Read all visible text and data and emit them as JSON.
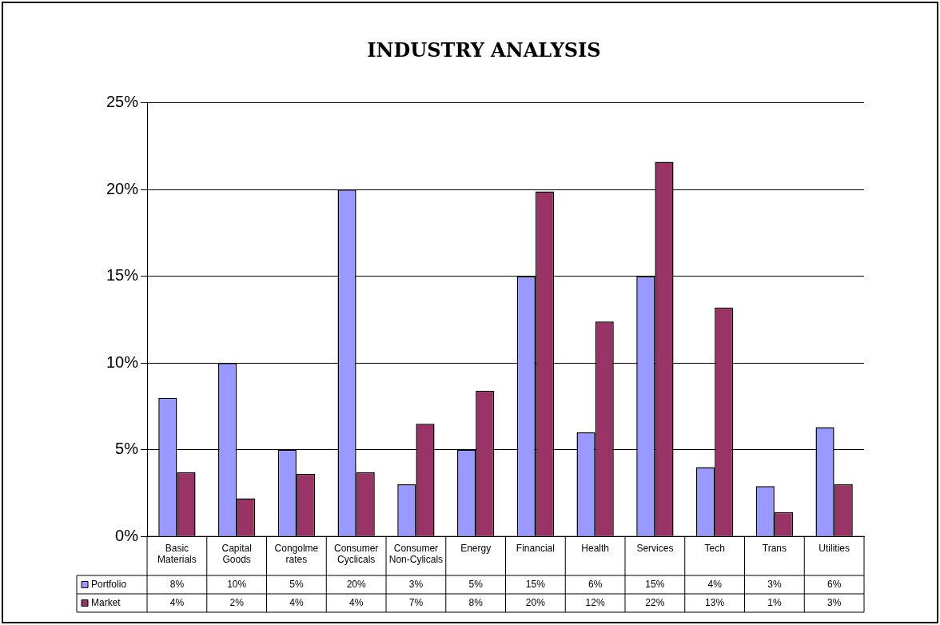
{
  "chart_data": {
    "type": "bar",
    "title": "INDUSTRY ANALYSIS",
    "categories": [
      "Basic Materials",
      "Capital Goods",
      "Congolmerates",
      "Consumer Cyclicals",
      "Consumer Non-Cylicals",
      "Energy",
      "Financial",
      "Health",
      "Services",
      "Tech",
      "Trans",
      "Utilities"
    ],
    "series": [
      {
        "name": "Portfolio",
        "color": "#9999ff",
        "values": [
          8.0,
          10.0,
          5.0,
          20.0,
          3.0,
          5.0,
          15.0,
          6.0,
          15.0,
          4.0,
          2.9,
          6.3
        ],
        "value_labels": [
          "8%",
          "10%",
          "5%",
          "20%",
          "3%",
          "5%",
          "15%",
          "6%",
          "15%",
          "4%",
          "3%",
          "6%"
        ]
      },
      {
        "name": "Market",
        "color": "#993366",
        "values": [
          3.7,
          2.2,
          3.6,
          3.7,
          6.5,
          8.4,
          19.9,
          12.4,
          21.6,
          13.2,
          1.4,
          3.0
        ],
        "value_labels": [
          "4%",
          "2%",
          "4%",
          "4%",
          "7%",
          "8%",
          "20%",
          "12%",
          "22%",
          "13%",
          "1%",
          "3%"
        ]
      }
    ],
    "ylim": [
      0,
      25
    ],
    "yticks": [
      {
        "value": 0,
        "label": "0%"
      },
      {
        "value": 5,
        "label": "5%"
      },
      {
        "value": 10,
        "label": "10%"
      },
      {
        "value": 15,
        "label": "15%"
      },
      {
        "value": 20,
        "label": "20%"
      },
      {
        "value": 25,
        "label": "25%"
      }
    ],
    "grid": "y",
    "legend": "bottom"
  }
}
